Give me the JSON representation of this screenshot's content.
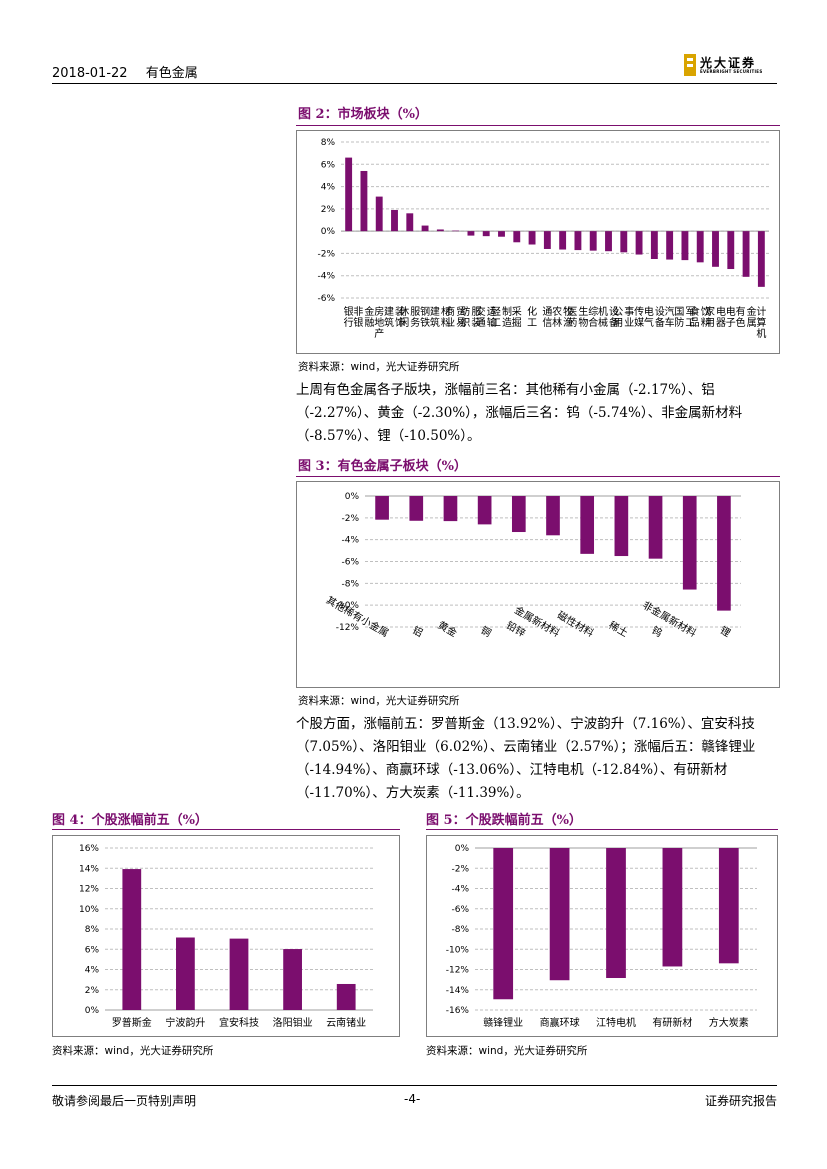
{
  "header": {
    "date": "2018-01-22",
    "section": "有色金属",
    "logo_name": "光大证券",
    "logo_en": "EVERBRIGHT SECURITIES"
  },
  "figures": {
    "fig2": {
      "title": "图 2：市场板块（%）",
      "source": "资料来源：wind，光大证券研究所"
    },
    "fig3": {
      "title": "图 3：有色金属子板块（%）",
      "source": "资料来源：wind，光大证券研究所"
    },
    "fig4": {
      "title": "图 4：个股涨幅前五（%）",
      "source": "资料来源：wind，光大证券研究所"
    },
    "fig5": {
      "title": "图 5：个股跌幅前五（%）",
      "source": "资料来源：wind，光大证券研究所"
    }
  },
  "paragraphs": {
    "p1": "上周有色金属各子版块，涨幅前三名：其他稀有小金属（-2.17%）、铝（-2.27%）、黄金（-2.30%），涨幅后三名：钨（-5.74%）、非金属新材料（-8.57%）、锂（-10.50%）。",
    "p2": "个股方面，涨幅前五：罗普斯金（13.92%）、宁波韵升（7.16%）、宜安科技（7.05%）、洛阳钼业（6.02%）、云南锗业（2.57%）；涨幅后五：赣锋锂业（-14.94%）、商赢环球（-13.06%）、江特电机（-12.84%）、有研新材（-11.70%）、方大炭素（-11.39%）。"
  },
  "footer": {
    "left": "敬请参阅最后一页特别声明",
    "center": "-4-",
    "right": "证券研究报告"
  },
  "colors": {
    "bar": "#7b0e6e",
    "title": "#7b0e6e"
  },
  "chart_data": [
    {
      "id": "fig2",
      "type": "bar",
      "categories": [
        "银行",
        "非银金融",
        "房地产",
        "建筑装饰",
        "休闲服务",
        "钢铁",
        "建筑材料",
        "商业贸易",
        "纺织服装",
        "交通运输",
        "轻工制造",
        "采掘",
        "化工",
        "通信",
        "农林牧渔",
        "医药生物",
        "综合",
        "机械设备",
        "公用事业",
        "传媒",
        "电气设备",
        "汽车",
        "国防军工",
        "食品饮料",
        "家用电器",
        "电子",
        "有色金属",
        "计算机"
      ],
      "values": [
        6.6,
        5.4,
        3.1,
        1.9,
        1.6,
        0.5,
        0.15,
        0.05,
        -0.4,
        -0.45,
        -0.5,
        -1.0,
        -1.2,
        -1.6,
        -1.65,
        -1.7,
        -1.75,
        -1.8,
        -1.9,
        -2.1,
        -2.5,
        -2.55,
        -2.6,
        -2.8,
        -3.2,
        -3.4,
        -4.1,
        -5.0
      ],
      "ylim": [
        -6,
        8
      ],
      "yticks": [
        8,
        6,
        4,
        2,
        0,
        -2,
        -4,
        -6
      ]
    },
    {
      "id": "fig3",
      "type": "bar",
      "categories": [
        "其他稀有小金属",
        "铝",
        "黄金",
        "铜",
        "铅锌",
        "金属新材料",
        "磁性材料",
        "稀土",
        "钨",
        "非金属新材料",
        "锂"
      ],
      "values": [
        -2.17,
        -2.27,
        -2.3,
        -2.6,
        -3.3,
        -3.6,
        -5.3,
        -5.5,
        -5.74,
        -8.57,
        -10.5
      ],
      "ylim": [
        -12,
        0
      ],
      "yticks": [
        0,
        -2,
        -4,
        -6,
        -8,
        -10,
        -12
      ]
    },
    {
      "id": "fig4",
      "type": "bar",
      "categories": [
        "罗普斯金",
        "宁波韵升",
        "宜安科技",
        "洛阳钼业",
        "云南锗业"
      ],
      "values": [
        13.92,
        7.16,
        7.05,
        6.02,
        2.57
      ],
      "ylim": [
        0,
        16
      ],
      "yticks": [
        16,
        14,
        12,
        10,
        8,
        6,
        4,
        2,
        0
      ]
    },
    {
      "id": "fig5",
      "type": "bar",
      "categories": [
        "赣锋锂业",
        "商赢环球",
        "江特电机",
        "有研新材",
        "方大炭素"
      ],
      "values": [
        -14.94,
        -13.06,
        -12.84,
        -11.7,
        -11.39
      ],
      "ylim": [
        -16,
        0
      ],
      "yticks": [
        0,
        -2,
        -4,
        -6,
        -8,
        -10,
        -12,
        -14,
        -16
      ]
    }
  ]
}
